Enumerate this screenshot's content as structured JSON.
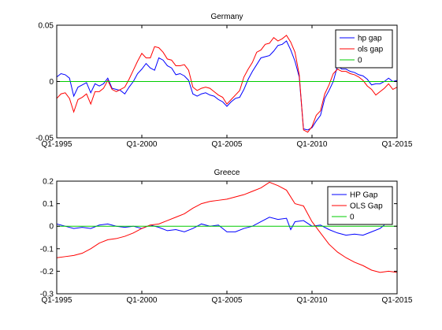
{
  "chart_data": [
    {
      "type": "line",
      "title": "Germany",
      "xlabel": "",
      "ylabel": "",
      "xlim": [
        1995.0,
        2015.0
      ],
      "ylim": [
        -0.05,
        0.05
      ],
      "xticks": [
        1995,
        2000,
        2005,
        2010,
        2015
      ],
      "xtick_labels": [
        "Q1-1995",
        "Q1-2000",
        "Q1-2005",
        "Q1-2010",
        "Q1-2015"
      ],
      "yticks": [
        -0.05,
        0,
        0.05
      ],
      "ytick_labels": [
        "-0.05",
        "0",
        "0.05"
      ],
      "grid": false,
      "legend_position": "top-right",
      "series": [
        {
          "name": "hp gap",
          "color": "#0000ff",
          "x": [
            1995.0,
            1995.25,
            1995.5,
            1995.75,
            1996.0,
            1996.25,
            1996.5,
            1996.75,
            1997.0,
            1997.25,
            1997.5,
            1997.75,
            1998.0,
            1998.25,
            1998.5,
            1998.75,
            1999.0,
            1999.25,
            1999.5,
            1999.75,
            2000.0,
            2000.25,
            2000.5,
            2000.75,
            2001.0,
            2001.25,
            2001.5,
            2001.75,
            2002.0,
            2002.25,
            2002.5,
            2002.75,
            2003.0,
            2003.25,
            2003.5,
            2003.75,
            2004.0,
            2004.25,
            2004.5,
            2004.75,
            2005.0,
            2005.25,
            2005.5,
            2005.75,
            2006.0,
            2006.25,
            2006.5,
            2006.75,
            2007.0,
            2007.25,
            2007.5,
            2007.75,
            2008.0,
            2008.25,
            2008.5,
            2008.75,
            2009.0,
            2009.25,
            2009.5,
            2009.75,
            2010.0,
            2010.25,
            2010.5,
            2010.75,
            2011.0,
            2011.25,
            2011.5,
            2011.75,
            2012.0,
            2012.25,
            2012.5,
            2012.75,
            2013.0,
            2013.25,
            2013.5,
            2013.75,
            2014.0,
            2014.25,
            2014.5,
            2014.75,
            2015.0
          ],
          "values": [
            0.004,
            0.007,
            0.006,
            0.003,
            -0.013,
            -0.005,
            -0.003,
            -0.001,
            -0.01,
            -0.002,
            -0.004,
            -0.002,
            0.003,
            -0.006,
            -0.007,
            -0.008,
            -0.011,
            -0.005,
            0.0,
            0.007,
            0.011,
            0.016,
            0.012,
            0.01,
            0.021,
            0.019,
            0.014,
            0.012,
            0.006,
            0.007,
            0.005,
            0.001,
            -0.011,
            -0.013,
            -0.011,
            -0.01,
            -0.012,
            -0.013,
            -0.016,
            -0.018,
            -0.022,
            -0.018,
            -0.015,
            -0.014,
            -0.007,
            0.002,
            0.009,
            0.015,
            0.021,
            0.022,
            0.023,
            0.027,
            0.032,
            0.033,
            0.036,
            0.028,
            0.018,
            0.004,
            -0.042,
            -0.043,
            -0.041,
            -0.035,
            -0.03,
            -0.015,
            -0.008,
            0.0,
            0.014,
            0.011,
            0.011,
            0.009,
            0.008,
            0.006,
            0.005,
            0.002,
            -0.003,
            -0.002,
            -0.002,
            0.0,
            0.003,
            0.0,
            0.001
          ]
        },
        {
          "name": "ols gap",
          "color": "#ff0000",
          "x": [
            1995.0,
            1995.25,
            1995.5,
            1995.75,
            1996.0,
            1996.25,
            1996.5,
            1996.75,
            1997.0,
            1997.25,
            1997.5,
            1997.75,
            1998.0,
            1998.25,
            1998.5,
            1998.75,
            1999.0,
            1999.25,
            1999.5,
            1999.75,
            2000.0,
            2000.25,
            2000.5,
            2000.75,
            2001.0,
            2001.25,
            2001.5,
            2001.75,
            2002.0,
            2002.25,
            2002.5,
            2002.75,
            2003.0,
            2003.25,
            2003.5,
            2003.75,
            2004.0,
            2004.25,
            2004.5,
            2004.75,
            2005.0,
            2005.25,
            2005.5,
            2005.75,
            2006.0,
            2006.25,
            2006.5,
            2006.75,
            2007.0,
            2007.25,
            2007.5,
            2007.75,
            2008.0,
            2008.25,
            2008.5,
            2008.75,
            2009.0,
            2009.25,
            2009.5,
            2009.75,
            2010.0,
            2010.25,
            2010.5,
            2010.75,
            2011.0,
            2011.25,
            2011.5,
            2011.75,
            2012.0,
            2012.25,
            2012.5,
            2012.75,
            2013.0,
            2013.25,
            2013.5,
            2013.75,
            2014.0,
            2014.25,
            2014.5,
            2014.75,
            2015.0
          ],
          "values": [
            -0.015,
            -0.011,
            -0.01,
            -0.015,
            -0.027,
            -0.016,
            -0.014,
            -0.011,
            -0.02,
            -0.009,
            -0.009,
            -0.006,
            0.001,
            -0.007,
            -0.009,
            -0.007,
            -0.005,
            0.002,
            0.01,
            0.018,
            0.025,
            0.021,
            0.021,
            0.031,
            0.03,
            0.026,
            0.02,
            0.019,
            0.014,
            0.014,
            0.015,
            0.01,
            -0.005,
            -0.008,
            -0.006,
            -0.005,
            -0.006,
            -0.009,
            -0.012,
            -0.014,
            -0.02,
            -0.016,
            -0.012,
            -0.008,
            0.004,
            0.011,
            0.017,
            0.026,
            0.028,
            0.033,
            0.034,
            0.039,
            0.036,
            0.038,
            0.041,
            0.035,
            0.026,
            0.006,
            -0.043,
            -0.045,
            -0.04,
            -0.03,
            -0.026,
            -0.011,
            -0.003,
            0.007,
            0.011,
            0.009,
            0.009,
            0.007,
            0.006,
            0.004,
            0.001,
            -0.004,
            -0.007,
            -0.012,
            -0.009,
            -0.006,
            -0.002,
            -0.007,
            -0.005
          ]
        },
        {
          "name": "0",
          "color": "#00cc00",
          "x": [
            1995.0,
            2015.0
          ],
          "values": [
            0,
            0
          ]
        }
      ]
    },
    {
      "type": "line",
      "title": "Greece",
      "xlabel": "",
      "ylabel": "",
      "xlim": [
        1995.0,
        2015.0
      ],
      "ylim": [
        -0.3,
        0.2
      ],
      "xticks": [
        1995,
        2000,
        2005,
        2010,
        2015
      ],
      "xtick_labels": [
        "Q1-1995",
        "Q1-2000",
        "Q1-2005",
        "Q1-2010",
        "Q1-2015"
      ],
      "yticks": [
        -0.3,
        -0.2,
        -0.1,
        0,
        0.1,
        0.2
      ],
      "ytick_labels": [
        "-0.3",
        "-0.2",
        "-0.1",
        "0",
        "0.1",
        "0.2"
      ],
      "grid": false,
      "legend_position": "top-right",
      "series": [
        {
          "name": "HP Gap",
          "color": "#0000ff",
          "x": [
            1995.0,
            1995.5,
            1996.0,
            1996.5,
            1997.0,
            1997.5,
            1998.0,
            1998.5,
            1999.0,
            1999.5,
            2000.0,
            2000.5,
            2001.0,
            2001.5,
            2002.0,
            2002.5,
            2003.0,
            2003.5,
            2004.0,
            2004.5,
            2005.0,
            2005.5,
            2006.0,
            2006.5,
            2007.0,
            2007.5,
            2008.0,
            2008.5,
            2008.75,
            2009.0,
            2009.5,
            2010.0,
            2010.5,
            2011.0,
            2011.5,
            2012.0,
            2012.5,
            2013.0,
            2013.5,
            2014.0,
            2014.25
          ],
          "values": [
            0.01,
            0.0,
            -0.01,
            -0.005,
            -0.01,
            0.005,
            0.01,
            0.0,
            -0.005,
            0.0,
            -0.01,
            0.005,
            -0.005,
            -0.02,
            -0.015,
            -0.025,
            -0.01,
            0.01,
            0.0,
            0.005,
            -0.025,
            -0.025,
            -0.01,
            0.0,
            0.02,
            0.04,
            0.03,
            0.035,
            -0.015,
            0.02,
            0.025,
            0.0,
            0.005,
            -0.015,
            -0.03,
            -0.04,
            -0.035,
            -0.04,
            -0.025,
            -0.01,
            0.005
          ]
        },
        {
          "name": "OLS Gap",
          "color": "#ff0000",
          "x": [
            1995.0,
            1995.5,
            1996.0,
            1996.5,
            1997.0,
            1997.5,
            1998.0,
            1998.5,
            1999.0,
            1999.5,
            2000.0,
            2000.5,
            2001.0,
            2001.5,
            2002.0,
            2002.5,
            2003.0,
            2003.5,
            2004.0,
            2004.5,
            2005.0,
            2005.5,
            2006.0,
            2006.5,
            2007.0,
            2007.5,
            2008.0,
            2008.5,
            2009.0,
            2009.5,
            2010.0,
            2010.5,
            2011.0,
            2011.5,
            2012.0,
            2012.5,
            2013.0,
            2013.5,
            2014.0,
            2014.5,
            2015.0
          ],
          "values": [
            -0.14,
            -0.135,
            -0.13,
            -0.12,
            -0.1,
            -0.075,
            -0.06,
            -0.055,
            -0.045,
            -0.03,
            -0.01,
            0.005,
            0.01,
            0.025,
            0.04,
            0.055,
            0.08,
            0.1,
            0.11,
            0.115,
            0.12,
            0.13,
            0.14,
            0.155,
            0.17,
            0.195,
            0.18,
            0.16,
            0.1,
            0.09,
            0.02,
            -0.03,
            -0.08,
            -0.115,
            -0.14,
            -0.16,
            -0.175,
            -0.195,
            -0.205,
            -0.2,
            -0.205
          ]
        },
        {
          "name": "0",
          "color": "#00cc00",
          "x": [
            1995.0,
            2015.0
          ],
          "values": [
            0,
            0
          ]
        }
      ]
    }
  ]
}
